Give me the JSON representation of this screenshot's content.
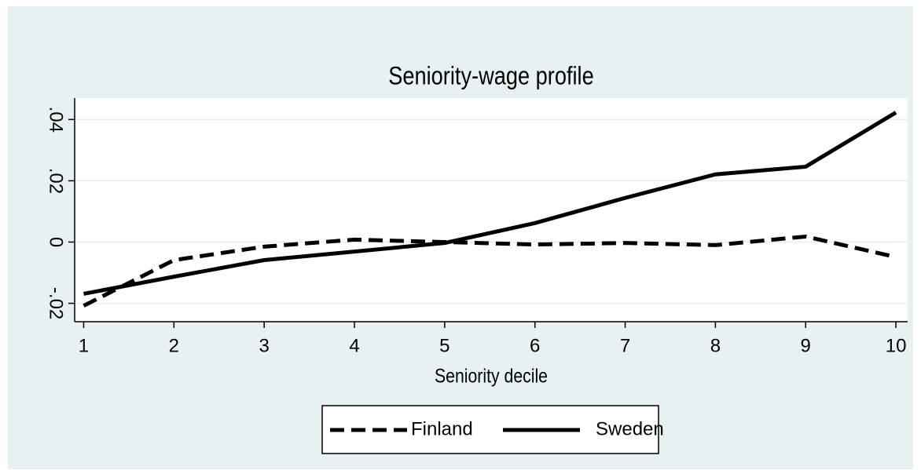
{
  "chart_data": {
    "type": "line",
    "title": "Seniority-wage profile",
    "x_label": "Seniority decile",
    "x": [
      1,
      2,
      3,
      4,
      5,
      6,
      7,
      8,
      9,
      10
    ],
    "series": [
      {
        "name": "Finland",
        "color": "#000000",
        "style": "dashed",
        "values": [
          -0.0208,
          -0.0059,
          -0.0015,
          0.0008,
          0,
          -0.0008,
          -0.0003,
          -0.001,
          0.0018,
          -0.0049
        ]
      },
      {
        "name": "Sweden",
        "color": "#000000",
        "style": "solid",
        "values": [
          -0.0169,
          -0.0113,
          -0.0059,
          -0.0031,
          -0.0003,
          0.0062,
          0.0144,
          0.0221,
          0.0246,
          0.0423
        ]
      }
    ],
    "xlim": [
      0.9,
      10.13
    ],
    "xticks": [
      1,
      2,
      3,
      4,
      5,
      6,
      7,
      8,
      9,
      10
    ],
    "ylim": [
      -0.026,
      0.047
    ],
    "yticks": [
      {
        "value": -0.02,
        "label": "-.02"
      },
      0,
      {
        "value": 0.02,
        "label": ".02"
      },
      {
        "value": 0.04,
        "label": ".04"
      }
    ],
    "grid": true,
    "legend": "bottom"
  }
}
